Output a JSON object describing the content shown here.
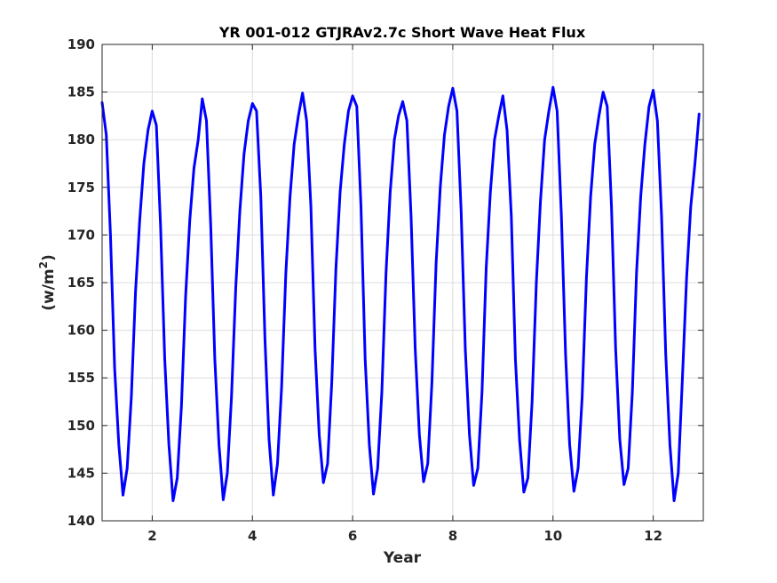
{
  "chart_data": {
    "type": "line",
    "title": "YR 001-012 GTJRAv2.7c Short Wave Heat Flux",
    "xlabel": "Year",
    "ylabel_main": "(w/m",
    "ylabel_sup": "2",
    "ylabel_tail": ")",
    "xlim": [
      1,
      13
    ],
    "ylim": [
      140,
      190
    ],
    "xticks": [
      2,
      4,
      6,
      8,
      10,
      12
    ],
    "yticks": [
      140,
      145,
      150,
      155,
      160,
      165,
      170,
      175,
      180,
      185,
      190
    ],
    "grid": true,
    "line_color": "#0000ff",
    "series": [
      {
        "x": [
          1.0,
          1.083,
          1.167,
          1.25,
          1.333,
          1.417,
          1.5,
          1.583,
          1.667,
          1.75,
          1.833,
          1.917,
          2.0,
          2.083,
          2.167,
          2.25,
          2.333,
          2.417,
          2.5,
          2.583,
          2.667,
          2.75,
          2.833,
          2.917,
          3.0,
          3.083,
          3.167,
          3.25,
          3.333,
          3.417,
          3.5,
          3.583,
          3.667,
          3.75,
          3.833,
          3.917,
          4.0,
          4.083,
          4.167,
          4.25,
          4.333,
          4.417,
          4.5,
          4.583,
          4.667,
          4.75,
          4.833,
          4.917,
          5.0,
          5.083,
          5.167,
          5.25,
          5.333,
          5.417,
          5.5,
          5.583,
          5.667,
          5.75,
          5.833,
          5.917,
          6.0,
          6.083,
          6.167,
          6.25,
          6.333,
          6.417,
          6.5,
          6.583,
          6.667,
          6.75,
          6.833,
          6.917,
          7.0,
          7.083,
          7.167,
          7.25,
          7.333,
          7.417,
          7.5,
          7.583,
          7.667,
          7.75,
          7.833,
          7.917,
          8.0,
          8.083,
          8.167,
          8.25,
          8.333,
          8.417,
          8.5,
          8.583,
          8.667,
          8.75,
          8.833,
          8.917,
          9.0,
          9.083,
          9.167,
          9.25,
          9.333,
          9.417,
          9.5,
          9.583,
          9.667,
          9.75,
          9.833,
          9.917,
          10.0,
          10.083,
          10.167,
          10.25,
          10.333,
          10.417,
          10.5,
          10.583,
          10.667,
          10.75,
          10.833,
          10.917,
          11.0,
          11.083,
          11.167,
          11.25,
          11.333,
          11.417,
          11.5,
          11.583,
          11.667,
          11.75,
          11.833,
          11.917,
          12.0,
          12.083,
          12.167,
          12.25,
          12.333,
          12.417,
          12.5,
          12.583,
          12.667,
          12.75,
          12.833,
          12.917
        ],
        "y": [
          183.9,
          180.5,
          170.0,
          156.0,
          148.0,
          142.7,
          145.5,
          153.0,
          164.0,
          171.5,
          177.5,
          181.0,
          183.0,
          181.5,
          171.0,
          157.0,
          148.0,
          142.1,
          144.5,
          152.0,
          163.5,
          171.5,
          177.0,
          180.0,
          184.3,
          182.0,
          171.0,
          157.0,
          148.0,
          142.2,
          145.0,
          153.0,
          164.5,
          172.5,
          178.5,
          182.0,
          183.8,
          183.0,
          174.0,
          159.0,
          148.5,
          142.7,
          146.0,
          154.0,
          166.0,
          174.0,
          179.5,
          182.5,
          184.9,
          182.0,
          173.0,
          158.0,
          149.0,
          144.0,
          146.0,
          154.5,
          166.5,
          174.5,
          179.5,
          183.0,
          184.6,
          183.5,
          173.0,
          157.0,
          148.0,
          142.8,
          145.5,
          153.5,
          166.0,
          174.5,
          180.0,
          182.5,
          184.0,
          182.0,
          172.0,
          158.0,
          149.0,
          144.1,
          146.0,
          154.5,
          167.0,
          175.0,
          180.5,
          183.5,
          185.4,
          183.0,
          172.5,
          158.0,
          149.0,
          143.7,
          145.5,
          153.5,
          166.5,
          174.5,
          180.0,
          182.5,
          184.6,
          181.0,
          172.0,
          157.0,
          148.5,
          143.0,
          144.5,
          152.5,
          165.0,
          173.5,
          180.0,
          183.0,
          185.5,
          183.0,
          172.0,
          157.5,
          148.0,
          143.1,
          145.5,
          153.0,
          165.5,
          174.0,
          179.5,
          182.5,
          185.0,
          183.5,
          173.0,
          158.0,
          148.5,
          143.8,
          145.5,
          153.5,
          166.0,
          174.0,
          179.5,
          183.5,
          185.2,
          182.0,
          172.0,
          157.5,
          148.0,
          142.1,
          145.0,
          155.0,
          165.5,
          173.0,
          177.5,
          182.7
        ]
      }
    ]
  }
}
